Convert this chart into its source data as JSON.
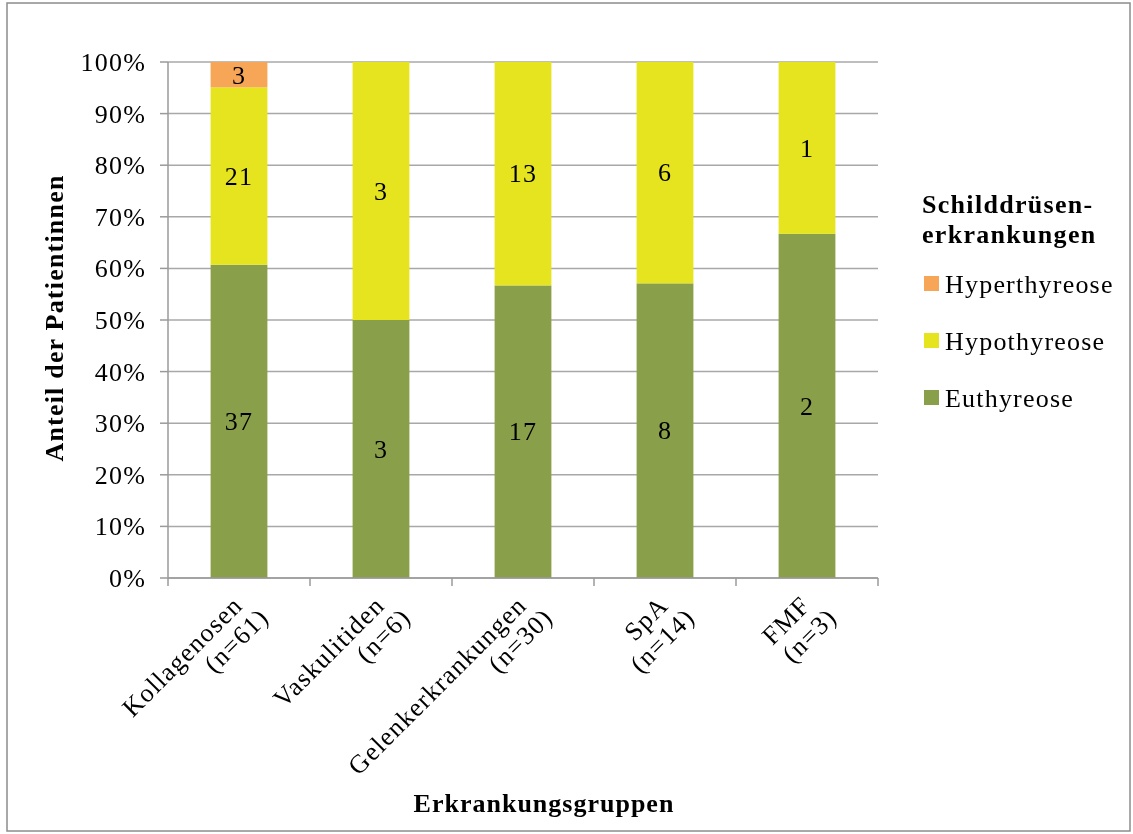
{
  "chart_data": {
    "type": "bar",
    "stacked": true,
    "xlabel": "Erkrankungsgruppen",
    "ylabel": "Anteil der Patientinnen",
    "legend_title": "Schilddrüsen-\nerkrankungen",
    "categories": [
      "Kollagenosen\n(n=61)",
      "Vaskulitiden\n(n=6)",
      "Gelenkerkrankungen\n(n=30)",
      "SpA\n(n=14)",
      "FMF\n(n=3)"
    ],
    "series": [
      {
        "name": "Euthyreose",
        "color": "#8a9f4a",
        "values": [
          60.7,
          50,
          56.7,
          57.1,
          66.7
        ]
      },
      {
        "name": "Hypothyreose",
        "color": "#e5e41f",
        "values": [
          34.4,
          50,
          43.3,
          42.9,
          33.3
        ]
      },
      {
        "name": "Hyperthyreose",
        "color": "#f7a556",
        "values": [
          4.9,
          null,
          null,
          null,
          null
        ]
      }
    ],
    "ylim": [
      0,
      100
    ],
    "yticks": [
      {
        "value": 0,
        "label": "0%"
      },
      {
        "value": 10,
        "label": "10%"
      },
      {
        "value": 20,
        "label": "20%"
      },
      {
        "value": 30,
        "label": "30%"
      },
      {
        "value": 40,
        "label": "40%"
      },
      {
        "value": 50,
        "label": "50%"
      },
      {
        "value": 60,
        "label": "60%"
      },
      {
        "value": 70,
        "label": "70%"
      },
      {
        "value": 80,
        "label": "80%"
      },
      {
        "value": 90,
        "label": "90%"
      },
      {
        "value": 100,
        "label": "100%"
      }
    ],
    "annotations": [
      {
        "text": "37",
        "x": "Kollagenosen\n(n=61)",
        "y": 30.4
      },
      {
        "text": "21",
        "x": "Kollagenosen\n(n=61)",
        "y": 77.9
      },
      {
        "text": "3",
        "x": "Kollagenosen\n(n=61)",
        "y": 97.5
      },
      {
        "text": "3",
        "x": "Vaskulitiden\n(n=6)",
        "y": 25
      },
      {
        "text": "3",
        "x": "Vaskulitiden\n(n=6)",
        "y": 75
      },
      {
        "text": "17",
        "x": "Gelenkerkrankungen\n(n=30)",
        "y": 28.4
      },
      {
        "text": "13",
        "x": "Gelenkerkrankungen\n(n=30)",
        "y": 78.4
      },
      {
        "text": "8",
        "x": "SpA\n(n=14)",
        "y": 28.6
      },
      {
        "text": "6",
        "x": "SpA\n(n=14)",
        "y": 78.6
      },
      {
        "text": "2",
        "x": "FMF\n(n=3)",
        "y": 33.4
      },
      {
        "text": "1",
        "x": "FMF\n(n=3)",
        "y": 83.4
      }
    ],
    "grid": "y",
    "legend": "right"
  }
}
